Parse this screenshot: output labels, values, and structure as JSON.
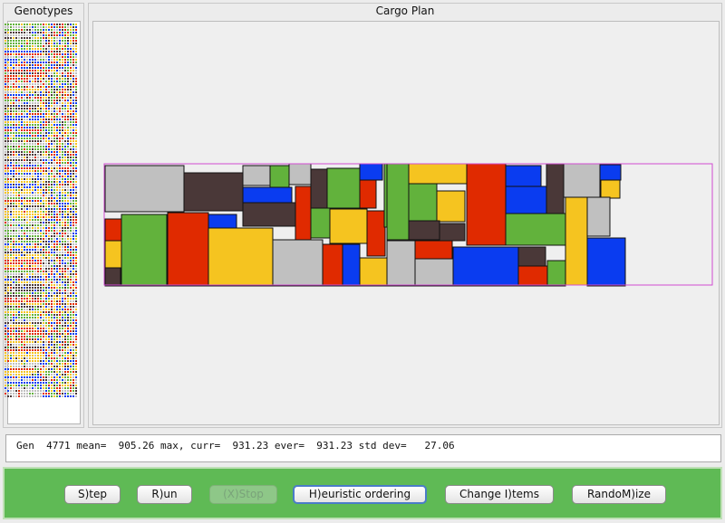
{
  "genotypes_panel": {
    "title": "Genotypes"
  },
  "cargo_plan": {
    "title": "Cargo Plan",
    "colors": {
      "gray": "#c0c0c0",
      "brown": "#4a3838",
      "blue": "#0a3cf0",
      "green": "#62b23c",
      "red": "#e02a00",
      "yellow": "#f5c420",
      "container_outline": "#d24bd2"
    }
  },
  "status": {
    "gen_label": "Gen",
    "gen": "4771",
    "mean_label": "mean=",
    "mean": "905.26",
    "max_curr_label": "max, curr=",
    "max_curr": "931.23",
    "ever_label": "ever=",
    "ever": "931.23",
    "std_dev_label": "std dev=",
    "std_dev": "27.06"
  },
  "buttons": {
    "step": "S)tep",
    "run": "R)un",
    "stop": "(X)Stop",
    "heuristic": "H)euristic ordering",
    "change_items": "Change I)tems",
    "randomize": "RandoM)ize"
  },
  "colors": {
    "button_bar": "#5fba55",
    "default_button_ring": "#4a7cc8"
  }
}
